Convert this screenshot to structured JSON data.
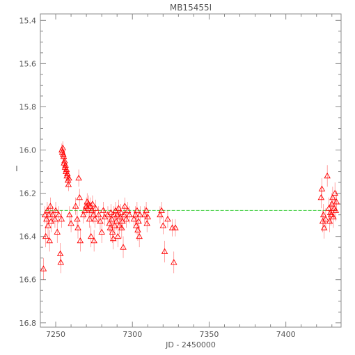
{
  "chart_data": {
    "type": "scatter",
    "title": "MB15455I",
    "xlabel": "JD - 2450000",
    "ylabel": "I",
    "xlim": [
      7240,
      7436
    ],
    "ylim": [
      15.37,
      16.82
    ],
    "y_inverted": true,
    "x_ticks": [
      7250,
      7300,
      7350,
      7400
    ],
    "x_tick_labels": [
      "7250",
      "7300",
      "7350",
      "7400"
    ],
    "y_ticks": [
      15.4,
      15.6,
      15.8,
      16.0,
      16.2,
      16.4,
      16.6,
      16.8
    ],
    "y_tick_labels": [
      "15.4",
      "15.6",
      "15.8",
      "16.0",
      "16.2",
      "16.4",
      "16.6",
      "16.8"
    ],
    "grid": false,
    "marker": "triangle-open",
    "colors": {
      "points": "#ff0000",
      "baseline": "#33cc33",
      "axes": "#888888"
    },
    "baseline": {
      "y": 16.28,
      "x_range": [
        7243,
        7433
      ]
    },
    "series": [
      {
        "points": [
          {
            "x": 7242.0,
            "y": 16.55,
            "err": 0.05
          },
          {
            "x": 7243.0,
            "y": 16.3,
            "err": 0.04
          },
          {
            "x": 7243.5,
            "y": 16.4,
            "err": 0.05
          },
          {
            "x": 7244.0,
            "y": 16.32,
            "err": 0.04
          },
          {
            "x": 7244.5,
            "y": 16.28,
            "err": 0.04
          },
          {
            "x": 7245.0,
            "y": 16.35,
            "err": 0.05
          },
          {
            "x": 7245.5,
            "y": 16.3,
            "err": 0.04
          },
          {
            "x": 7246.0,
            "y": 16.42,
            "err": 0.05
          },
          {
            "x": 7246.5,
            "y": 16.26,
            "err": 0.04
          },
          {
            "x": 7247.0,
            "y": 16.33,
            "err": 0.05
          },
          {
            "x": 7248.0,
            "y": 16.3,
            "err": 0.04
          },
          {
            "x": 7249.5,
            "y": 16.32,
            "err": 0.04
          },
          {
            "x": 7250.0,
            "y": 16.28,
            "err": 0.04
          },
          {
            "x": 7251.0,
            "y": 16.38,
            "err": 0.05
          },
          {
            "x": 7252.0,
            "y": 16.3,
            "err": 0.04
          },
          {
            "x": 7253.0,
            "y": 16.48,
            "err": 0.05
          },
          {
            "x": 7253.3,
            "y": 16.52,
            "err": 0.05
          },
          {
            "x": 7253.8,
            "y": 16.32,
            "err": 0.04
          },
          {
            "x": 7254.0,
            "y": 16.0,
            "err": 0.03
          },
          {
            "x": 7254.3,
            "y": 16.01,
            "err": 0.03
          },
          {
            "x": 7254.6,
            "y": 15.99,
            "err": 0.03
          },
          {
            "x": 7254.9,
            "y": 16.02,
            "err": 0.03
          },
          {
            "x": 7255.2,
            "y": 16.03,
            "err": 0.03
          },
          {
            "x": 7255.5,
            "y": 16.06,
            "err": 0.03
          },
          {
            "x": 7255.8,
            "y": 16.05,
            "err": 0.03
          },
          {
            "x": 7256.1,
            "y": 16.08,
            "err": 0.03
          },
          {
            "x": 7256.4,
            "y": 16.07,
            "err": 0.03
          },
          {
            "x": 7256.7,
            "y": 16.1,
            "err": 0.03
          },
          {
            "x": 7257.0,
            "y": 16.09,
            "err": 0.03
          },
          {
            "x": 7257.3,
            "y": 16.12,
            "err": 0.03
          },
          {
            "x": 7257.6,
            "y": 16.11,
            "err": 0.03
          },
          {
            "x": 7258.0,
            "y": 16.14,
            "err": 0.03
          },
          {
            "x": 7258.3,
            "y": 16.16,
            "err": 0.03
          },
          {
            "x": 7258.6,
            "y": 16.13,
            "err": 0.03
          },
          {
            "x": 7259.0,
            "y": 16.3,
            "err": 0.04
          },
          {
            "x": 7260.0,
            "y": 16.34,
            "err": 0.04
          },
          {
            "x": 7263.0,
            "y": 16.26,
            "err": 0.04
          },
          {
            "x": 7264.0,
            "y": 16.32,
            "err": 0.04
          },
          {
            "x": 7264.5,
            "y": 16.36,
            "err": 0.05
          },
          {
            "x": 7265.0,
            "y": 16.13,
            "err": 0.04
          },
          {
            "x": 7265.5,
            "y": 16.22,
            "err": 0.04
          },
          {
            "x": 7266.0,
            "y": 16.42,
            "err": 0.05
          },
          {
            "x": 7268.0,
            "y": 16.3,
            "err": 0.04
          },
          {
            "x": 7269.0,
            "y": 16.28,
            "err": 0.04
          },
          {
            "x": 7270.0,
            "y": 16.26,
            "err": 0.04
          },
          {
            "x": 7270.5,
            "y": 16.24,
            "err": 0.04
          },
          {
            "x": 7271.0,
            "y": 16.27,
            "err": 0.04
          },
          {
            "x": 7271.5,
            "y": 16.25,
            "err": 0.04
          },
          {
            "x": 7272.0,
            "y": 16.32,
            "err": 0.04
          },
          {
            "x": 7272.5,
            "y": 16.26,
            "err": 0.04
          },
          {
            "x": 7273.0,
            "y": 16.4,
            "err": 0.05
          },
          {
            "x": 7273.5,
            "y": 16.28,
            "err": 0.04
          },
          {
            "x": 7274.0,
            "y": 16.25,
            "err": 0.04
          },
          {
            "x": 7274.5,
            "y": 16.3,
            "err": 0.04
          },
          {
            "x": 7275.0,
            "y": 16.42,
            "err": 0.05
          },
          {
            "x": 7275.5,
            "y": 16.32,
            "err": 0.04
          },
          {
            "x": 7276.0,
            "y": 16.27,
            "err": 0.04
          },
          {
            "x": 7278.0,
            "y": 16.3,
            "err": 0.04
          },
          {
            "x": 7279.0,
            "y": 16.33,
            "err": 0.04
          },
          {
            "x": 7280.0,
            "y": 16.38,
            "err": 0.05
          },
          {
            "x": 7281.0,
            "y": 16.28,
            "err": 0.04
          },
          {
            "x": 7282.0,
            "y": 16.31,
            "err": 0.04
          },
          {
            "x": 7284.0,
            "y": 16.3,
            "err": 0.04
          },
          {
            "x": 7285.0,
            "y": 16.34,
            "err": 0.04
          },
          {
            "x": 7285.5,
            "y": 16.36,
            "err": 0.05
          },
          {
            "x": 7286.0,
            "y": 16.29,
            "err": 0.04
          },
          {
            "x": 7286.5,
            "y": 16.32,
            "err": 0.04
          },
          {
            "x": 7287.0,
            "y": 16.38,
            "err": 0.05
          },
          {
            "x": 7287.5,
            "y": 16.41,
            "err": 0.05
          },
          {
            "x": 7288.0,
            "y": 16.3,
            "err": 0.04
          },
          {
            "x": 7288.5,
            "y": 16.35,
            "err": 0.04
          },
          {
            "x": 7289.0,
            "y": 16.28,
            "err": 0.04
          },
          {
            "x": 7289.5,
            "y": 16.33,
            "err": 0.04
          },
          {
            "x": 7290.0,
            "y": 16.3,
            "err": 0.04
          },
          {
            "x": 7290.5,
            "y": 16.4,
            "err": 0.05
          },
          {
            "x": 7291.0,
            "y": 16.27,
            "err": 0.04
          },
          {
            "x": 7291.5,
            "y": 16.35,
            "err": 0.04
          },
          {
            "x": 7292.0,
            "y": 16.31,
            "err": 0.04
          },
          {
            "x": 7292.5,
            "y": 16.29,
            "err": 0.04
          },
          {
            "x": 7293.0,
            "y": 16.36,
            "err": 0.05
          },
          {
            "x": 7293.5,
            "y": 16.33,
            "err": 0.04
          },
          {
            "x": 7294.0,
            "y": 16.45,
            "err": 0.05
          },
          {
            "x": 7294.5,
            "y": 16.3,
            "err": 0.04
          },
          {
            "x": 7295.0,
            "y": 16.26,
            "err": 0.04
          },
          {
            "x": 7296.0,
            "y": 16.32,
            "err": 0.04
          },
          {
            "x": 7297.0,
            "y": 16.28,
            "err": 0.04
          },
          {
            "x": 7298.0,
            "y": 16.3,
            "err": 0.04
          },
          {
            "x": 7301.0,
            "y": 16.32,
            "err": 0.04
          },
          {
            "x": 7302.0,
            "y": 16.3,
            "err": 0.04
          },
          {
            "x": 7302.5,
            "y": 16.35,
            "err": 0.04
          },
          {
            "x": 7303.0,
            "y": 16.28,
            "err": 0.04
          },
          {
            "x": 7303.5,
            "y": 16.37,
            "err": 0.05
          },
          {
            "x": 7304.0,
            "y": 16.33,
            "err": 0.04
          },
          {
            "x": 7304.5,
            "y": 16.4,
            "err": 0.05
          },
          {
            "x": 7305.0,
            "y": 16.3,
            "err": 0.04
          },
          {
            "x": 7308.0,
            "y": 16.3,
            "err": 0.04
          },
          {
            "x": 7309.0,
            "y": 16.28,
            "err": 0.04
          },
          {
            "x": 7309.5,
            "y": 16.34,
            "err": 0.04
          },
          {
            "x": 7310.0,
            "y": 16.31,
            "err": 0.04
          },
          {
            "x": 7318.0,
            "y": 16.3,
            "err": 0.04
          },
          {
            "x": 7319.0,
            "y": 16.28,
            "err": 0.04
          },
          {
            "x": 7320.0,
            "y": 16.35,
            "err": 0.04
          },
          {
            "x": 7321.0,
            "y": 16.47,
            "err": 0.05
          },
          {
            "x": 7323.0,
            "y": 16.32,
            "err": 0.04
          },
          {
            "x": 7326.0,
            "y": 16.36,
            "err": 0.04
          },
          {
            "x": 7327.0,
            "y": 16.52,
            "err": 0.05
          },
          {
            "x": 7328.0,
            "y": 16.36,
            "err": 0.04
          },
          {
            "x": 7423.0,
            "y": 16.22,
            "err": 0.05
          },
          {
            "x": 7423.5,
            "y": 16.18,
            "err": 0.05
          },
          {
            "x": 7424.0,
            "y": 16.33,
            "err": 0.05
          },
          {
            "x": 7424.5,
            "y": 16.3,
            "err": 0.05
          },
          {
            "x": 7425.0,
            "y": 16.36,
            "err": 0.05
          },
          {
            "x": 7426.0,
            "y": 16.32,
            "err": 0.05
          },
          {
            "x": 7427.0,
            "y": 16.12,
            "err": 0.05
          },
          {
            "x": 7428.0,
            "y": 16.27,
            "err": 0.05
          },
          {
            "x": 7428.5,
            "y": 16.33,
            "err": 0.05
          },
          {
            "x": 7429.0,
            "y": 16.29,
            "err": 0.05
          },
          {
            "x": 7429.5,
            "y": 16.3,
            "err": 0.05
          },
          {
            "x": 7430.0,
            "y": 16.25,
            "err": 0.05
          },
          {
            "x": 7430.5,
            "y": 16.22,
            "err": 0.05
          },
          {
            "x": 7431.0,
            "y": 16.31,
            "err": 0.05
          },
          {
            "x": 7431.5,
            "y": 16.27,
            "err": 0.05
          },
          {
            "x": 7432.0,
            "y": 16.2,
            "err": 0.05
          },
          {
            "x": 7432.5,
            "y": 16.28,
            "err": 0.05
          },
          {
            "x": 7433.0,
            "y": 16.24,
            "err": 0.05
          }
        ]
      }
    ]
  }
}
